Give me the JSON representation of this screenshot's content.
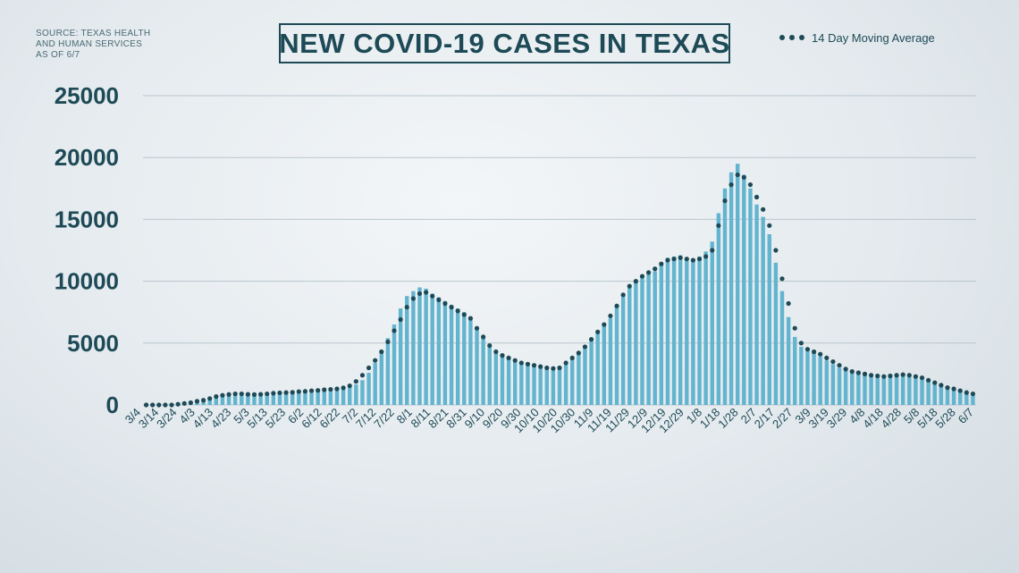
{
  "source": {
    "line1": "SOURCE: TEXAS HEALTH",
    "line2": "AND HUMAN SERVICES",
    "line3": "AS OF 6/7"
  },
  "colors": {
    "bar": "#62b4cf",
    "average": "#1d4a56",
    "grid": "#b9c6cd",
    "text": "#1d4a56"
  },
  "chart_data": {
    "type": "bar",
    "title": "NEW COVID-19 CASES IN TEXAS",
    "xlabel": "",
    "ylabel": "",
    "ylim": [
      0,
      25000
    ],
    "yticks": [
      0,
      5000,
      10000,
      15000,
      20000,
      25000
    ],
    "grid": true,
    "legend": {
      "position": "top-right",
      "entries": [
        "14 Day Moving Average"
      ]
    },
    "x_ticks": [
      "3/4",
      "3/14",
      "3/24",
      "4/3",
      "4/13",
      "4/23",
      "5/3",
      "5/13",
      "5/23",
      "6/2",
      "6/12",
      "6/22",
      "7/2",
      "7/12",
      "7/22",
      "8/1",
      "8/11",
      "8/21",
      "8/31",
      "9/10",
      "9/20",
      "9/30",
      "10/10",
      "10/20",
      "10/30",
      "11/9",
      "11/19",
      "11/29",
      "12/9",
      "12/19",
      "12/29",
      "1/8",
      "1/18",
      "1/28",
      "2/7",
      "2/17",
      "2/27",
      "3/9",
      "3/19",
      "3/29",
      "4/8",
      "4/18",
      "4/28",
      "5/8",
      "5/18",
      "5/28",
      "6/7"
    ],
    "bar_series": {
      "name": "",
      "values": [
        0,
        0,
        10,
        20,
        40,
        60,
        100,
        150,
        250,
        300,
        400,
        600,
        750,
        800,
        900,
        900,
        850,
        800,
        850,
        900,
        950,
        950,
        1000,
        1000,
        1050,
        1100,
        1150,
        1200,
        1250,
        1300,
        1350,
        1400,
        1500,
        1650,
        2000,
        2600,
        3400,
        4300,
        5400,
        6500,
        7800,
        8800,
        9200,
        9500,
        9400,
        9000,
        8700,
        8400,
        8100,
        7800,
        7500,
        7000,
        6200,
        5400,
        4700,
        4300,
        4100,
        3900,
        3700,
        3500,
        3400,
        3300,
        3200,
        3100,
        3000,
        2900,
        3300,
        3800,
        4200,
        4600,
        5200,
        5800,
        6400,
        7000,
        7900,
        8900,
        9600,
        10100,
        10400,
        10600,
        10800,
        11500,
        11900,
        12000,
        12100,
        11900,
        11800,
        12000,
        12400,
        13200,
        15500,
        17500,
        18800,
        19500,
        18600,
        17500,
        16200,
        15200,
        13800,
        11500,
        9200,
        7100,
        5500,
        4700,
        4400,
        4200,
        3900,
        3600,
        3300,
        3000,
        2800,
        2700,
        2600,
        2500,
        2400,
        2350,
        2300,
        2400,
        2450,
        2500,
        2400,
        2300,
        2200,
        2000,
        1800,
        1600,
        1400,
        1300,
        1100,
        900,
        800
      ]
    },
    "average_series": {
      "name": "14 Day Moving Average",
      "values": [
        0,
        0,
        0,
        0,
        0,
        60,
        120,
        180,
        300,
        380,
        520,
        680,
        780,
        850,
        900,
        900,
        860,
        840,
        860,
        900,
        950,
        980,
        1000,
        1020,
        1080,
        1100,
        1150,
        1180,
        1230,
        1260,
        1300,
        1380,
        1550,
        1900,
        2400,
        3000,
        3600,
        4300,
        5100,
        6000,
        6900,
        7900,
        8600,
        9000,
        9100,
        8800,
        8500,
        8200,
        7900,
        7600,
        7300,
        7000,
        6200,
        5500,
        4800,
        4300,
        4000,
        3800,
        3600,
        3400,
        3300,
        3200,
        3100,
        3000,
        2950,
        3000,
        3400,
        3800,
        4200,
        4700,
        5300,
        5900,
        6500,
        7200,
        8000,
        8900,
        9600,
        10000,
        10400,
        10700,
        11000,
        11400,
        11700,
        11800,
        11900,
        11800,
        11700,
        11800,
        12000,
        12500,
        14500,
        16500,
        17800,
        18600,
        18400,
        17800,
        16800,
        15800,
        14500,
        12500,
        10200,
        8200,
        6200,
        5000,
        4500,
        4300,
        4100,
        3800,
        3500,
        3200,
        2900,
        2700,
        2600,
        2500,
        2400,
        2350,
        2300,
        2350,
        2400,
        2450,
        2400,
        2300,
        2200,
        2000,
        1800,
        1600,
        1400,
        1300,
        1150,
        1000,
        900
      ]
    }
  }
}
